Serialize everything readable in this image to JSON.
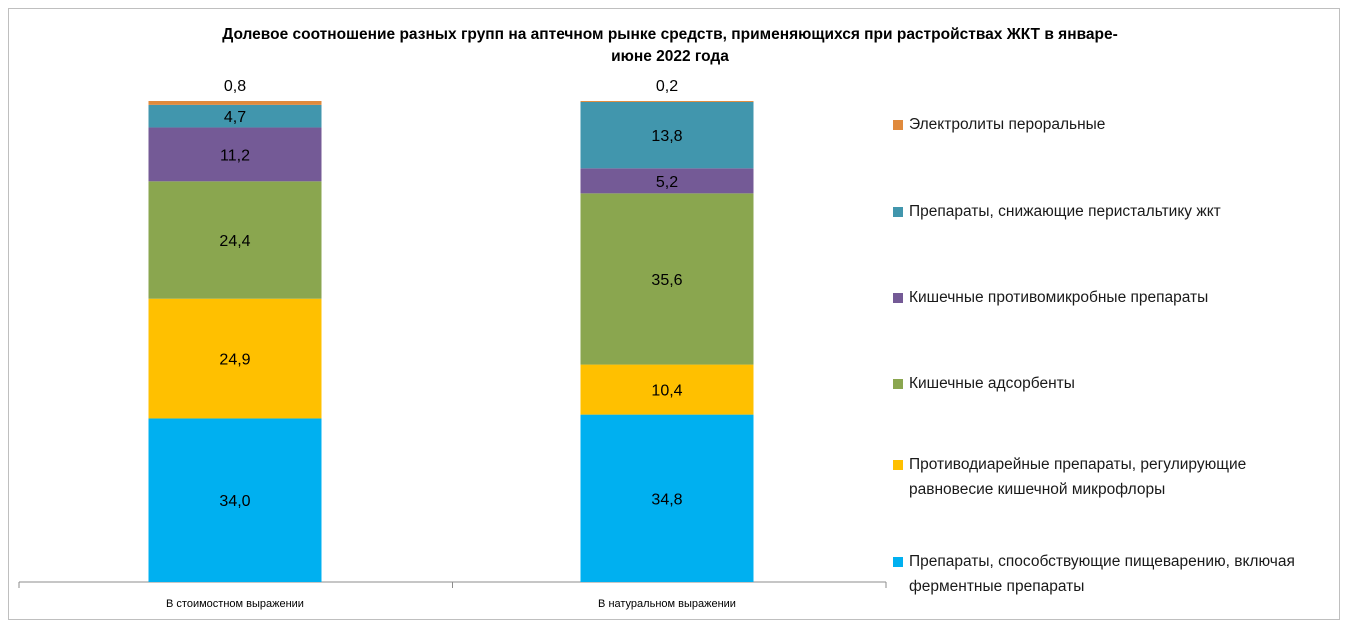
{
  "chart_data": {
    "type": "bar",
    "stacked": true,
    "title": "Долевое соотношение разных групп на аптечном рынке средств, применяющихся при растройствах ЖКТ в январе-\nиюне 2022 года",
    "categories": [
      "В стоимостном выражении",
      "В натуральном выражении"
    ],
    "series": [
      {
        "name": "Препараты, способствующие пищеварению, включая ферментные препараты",
        "color": "#00b0f0",
        "values": [
          34.0,
          34.8
        ],
        "labels": [
          "34,0",
          "34,8"
        ]
      },
      {
        "name": "Противодиарейные препараты, регулирующие равновесие кишечной микрофлоры",
        "color": "#ffc000",
        "values": [
          24.9,
          10.4
        ],
        "labels": [
          "24,9",
          "10,4"
        ]
      },
      {
        "name": "Кишечные адсорбенты",
        "color": "#8aa64f",
        "values": [
          24.4,
          35.6
        ],
        "labels": [
          "24,4",
          "35,6"
        ]
      },
      {
        "name": "Кишечные противомикробные препараты",
        "color": "#745a96",
        "values": [
          11.2,
          5.2
        ],
        "labels": [
          "11,2",
          "5,2"
        ]
      },
      {
        "name": "Препараты, снижающие перистальтику жкт",
        "color": "#4196ad",
        "values": [
          4.7,
          13.8
        ],
        "labels": [
          "4,7",
          "13,8"
        ]
      },
      {
        "name": "Электролиты пероральные",
        "color": "#e08a3c",
        "values": [
          0.8,
          0.2
        ],
        "labels": [
          "0,8",
          "0,2"
        ]
      }
    ],
    "legend_position": "right",
    "legend_order": "top-to-bottom reverse of stack",
    "grid": false
  }
}
